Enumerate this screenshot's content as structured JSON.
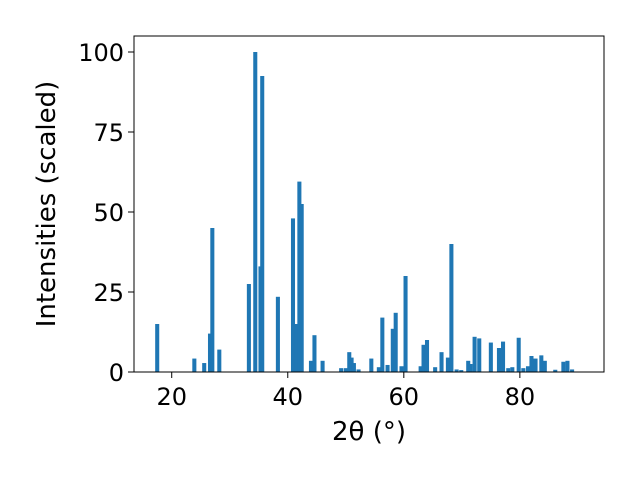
{
  "chart_data": {
    "type": "bar",
    "title": "",
    "xlabel": "2θ (°)",
    "ylabel": "Intensities (scaled)",
    "xlim": [
      13.5,
      94.5
    ],
    "ylim": [
      0,
      105
    ],
    "xticks": [
      20,
      40,
      60,
      80
    ],
    "yticks": [
      0,
      25,
      50,
      75,
      100
    ],
    "grid": false,
    "bar_color": "#1f77b4",
    "bar_width": 0.7,
    "x": [
      17.5,
      23.9,
      25.6,
      26.6,
      27.0,
      28.2,
      33.3,
      34.4,
      35.3,
      35.6,
      38.3,
      40.9,
      41.5,
      42.0,
      42.4,
      44.0,
      44.6,
      46.0,
      49.2,
      50.0,
      50.6,
      51.0,
      51.4,
      52.2,
      54.4,
      55.7,
      56.3,
      57.2,
      58.1,
      58.6,
      59.6,
      60.3,
      62.9,
      63.4,
      64.0,
      65.4,
      66.5,
      67.6,
      68.2,
      69.1,
      69.9,
      71.1,
      71.5,
      72.2,
      73.0,
      75.0,
      76.4,
      77.1,
      78.0,
      78.7,
      79.8,
      80.6,
      81.4,
      82.0,
      82.7,
      83.7,
      84.3,
      86.1,
      87.5,
      88.2,
      89.0
    ],
    "values": [
      15,
      4.2,
      2.8,
      12,
      45,
      7,
      27.5,
      100,
      33,
      92.5,
      23.5,
      48,
      15,
      59.5,
      52.5,
      3.5,
      11.5,
      3.5,
      1.2,
      1.2,
      6.2,
      4.5,
      2.8,
      0.8,
      4.2,
      1.5,
      17,
      2.2,
      13.5,
      18.5,
      1.8,
      30,
      1.8,
      8.5,
      10,
      1.5,
      6.2,
      4.5,
      40,
      0.8,
      0.6,
      3.5,
      2.5,
      11,
      10.5,
      9.2,
      7.5,
      9.5,
      1.2,
      1.5,
      10.7,
      1.2,
      1.8,
      5,
      4.2,
      5.2,
      3.5,
      0.7,
      3.2,
      3.5,
      0.8
    ]
  }
}
